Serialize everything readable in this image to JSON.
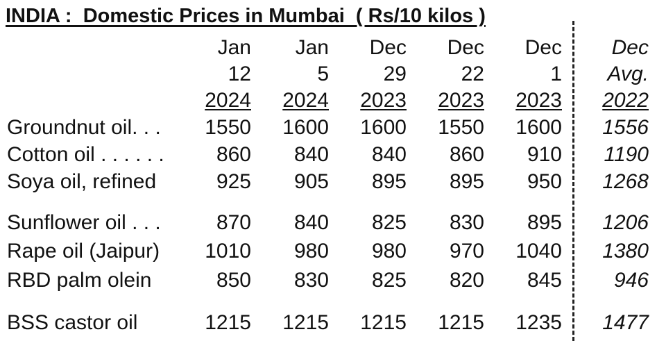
{
  "title": "INDIA :  Domestic Prices in Mumbai  ( Rs/10 kilos )",
  "table": {
    "columns": [
      [
        "Jan",
        "12",
        "2024"
      ],
      [
        "Jan",
        "5",
        "2024"
      ],
      [
        "Dec",
        "29",
        "2023"
      ],
      [
        "Dec",
        "22",
        "2023"
      ],
      [
        "Dec",
        "1",
        "2023"
      ],
      [
        "Dec",
        "Avg.",
        "2022"
      ]
    ],
    "rows": [
      {
        "label": "Groundnut oil. . .",
        "values": [
          1550,
          1600,
          1600,
          1550,
          1600,
          1556
        ]
      },
      {
        "label": "Cotton oil . . . . . .",
        "values": [
          860,
          840,
          840,
          860,
          910,
          1190
        ]
      },
      {
        "label": "Soya oil, refined",
        "values": [
          925,
          905,
          895,
          895,
          950,
          1268
        ]
      },
      {
        "label": "Sunflower oil . . .",
        "values": [
          870,
          840,
          825,
          830,
          895,
          1206
        ]
      },
      {
        "label": "Rape oil (Jaipur)",
        "values": [
          1010,
          980,
          980,
          970,
          1040,
          1380
        ]
      },
      {
        "label": "RBD palm olein",
        "values": [
          850,
          830,
          825,
          820,
          845,
          946
        ]
      },
      {
        "label": "BSS castor oil",
        "values": [
          1215,
          1215,
          1215,
          1215,
          1235,
          1477
        ]
      }
    ]
  }
}
